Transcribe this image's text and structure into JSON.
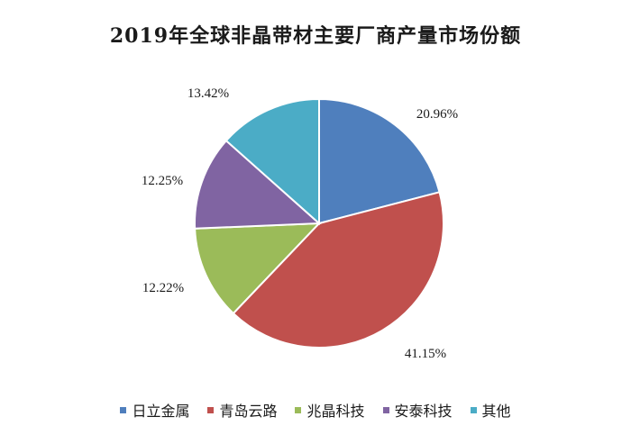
{
  "chart_data": {
    "type": "pie",
    "title": "2019年全球非晶带材主要厂商产量市场份额",
    "slices": [
      {
        "label": "日立金属",
        "value": 20.96,
        "value_label": "20.96%",
        "color": "#4f7fbd"
      },
      {
        "label": "青岛云路",
        "value": 41.15,
        "value_label": "41.15%",
        "color": "#c0504d"
      },
      {
        "label": "兆晶科技",
        "value": 12.22,
        "value_label": "12.22%",
        "color": "#9bbb59"
      },
      {
        "label": "安泰科技",
        "value": 12.25,
        "value_label": "12.25%",
        "color": "#8064a2"
      },
      {
        "label": "其他",
        "value": 13.42,
        "value_label": "13.42%",
        "color": "#4bacc6"
      }
    ],
    "start_angle": "12 o'clock",
    "direction": "clockwise",
    "legend": "bottom"
  }
}
